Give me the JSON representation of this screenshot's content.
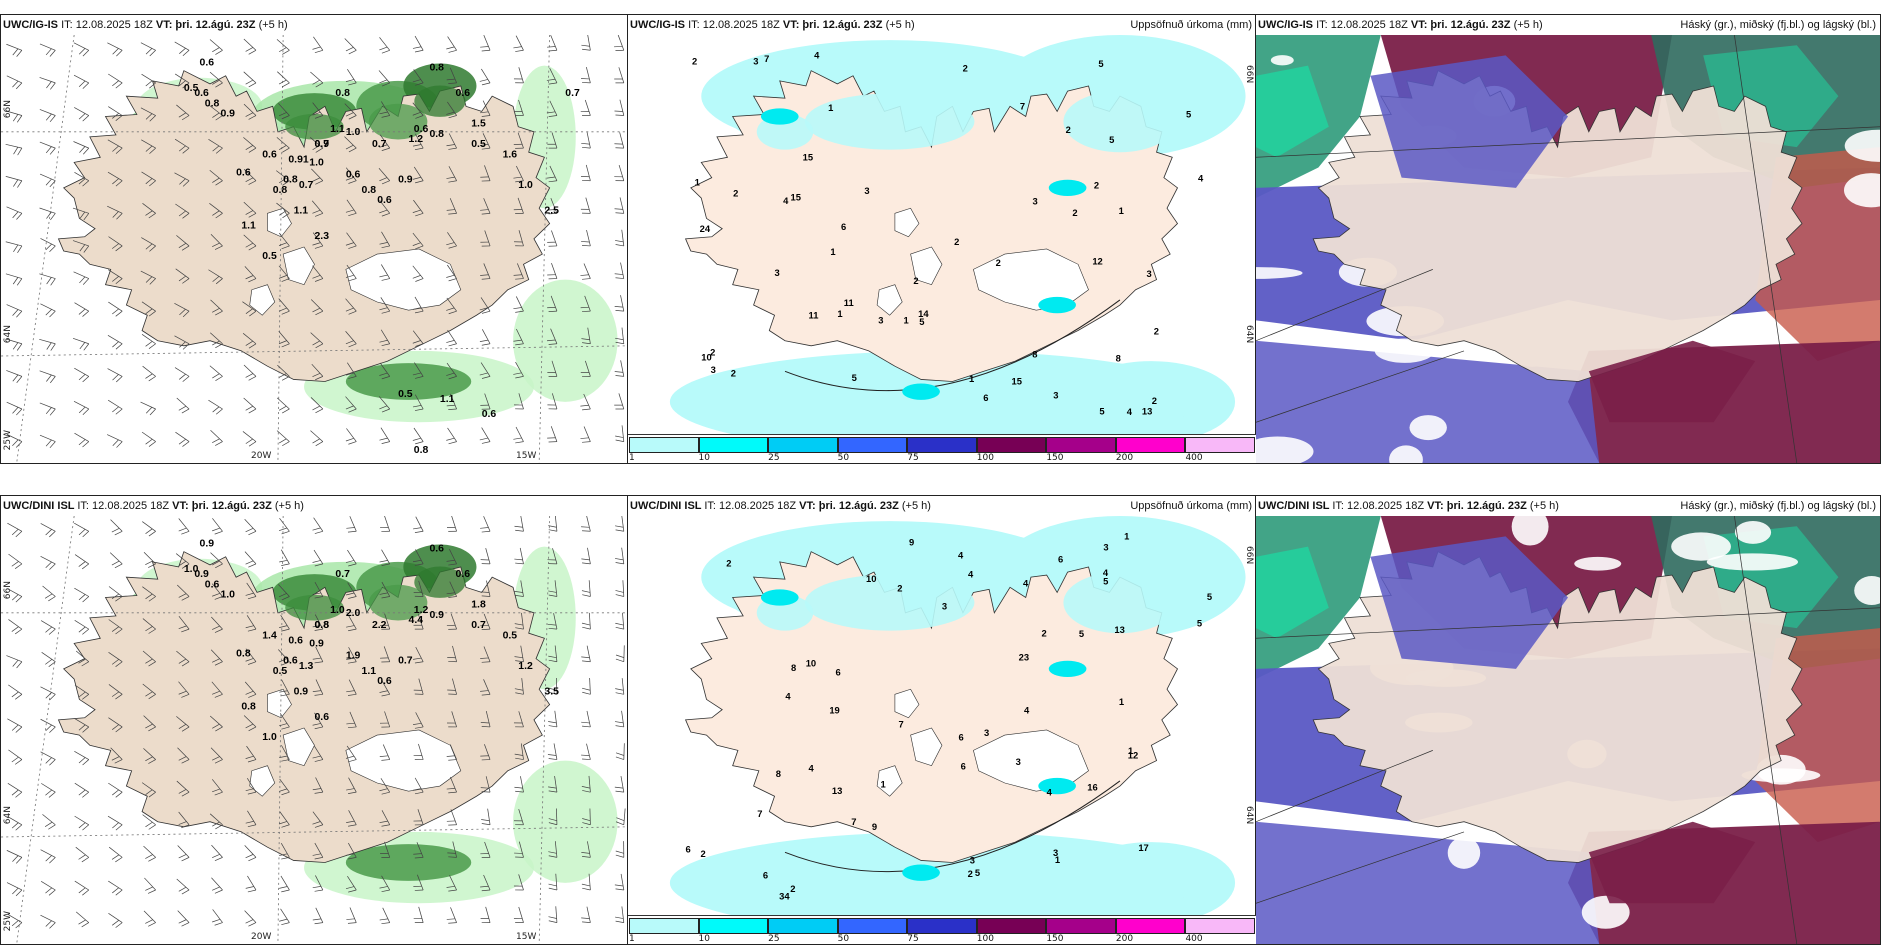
{
  "common": {
    "it_label": "IT:",
    "it_value": "12.08.2025 18Z",
    "vt_label": "VT:",
    "vt_value": "þri. 12.ágú. 23Z",
    "lead": "(+5 h)"
  },
  "panels": [
    {
      "model": "UWC/IG-IS",
      "product": "",
      "kind": "wind"
    },
    {
      "model": "UWC/IG-IS",
      "product": "Uppsöfnuð úrkoma (mm)",
      "kind": "precip"
    },
    {
      "model": "UWC/IG-IS",
      "product": "Háský (gr.), miðský (fj.bl.) og lágský (bl.)",
      "kind": "cloud"
    },
    {
      "model": "UWC/DINI ISL",
      "product": "",
      "kind": "wind"
    },
    {
      "model": "UWC/DINI ISL",
      "product": "Uppsöfnuð úrkoma (mm)",
      "kind": "precip"
    },
    {
      "model": "UWC/DINI ISL",
      "product": "Háský (gr.), miðský (fj.bl.) og lágský (bl.)",
      "kind": "cloud"
    }
  ],
  "axis_labels": {
    "lat_66": "66N",
    "lat_64": "64N",
    "lon_25": "25W",
    "lon_20": "20W",
    "lon_15": "15W"
  },
  "colorbar": {
    "ticks": [
      "1",
      "10",
      "25",
      "50",
      "75",
      "100",
      "150",
      "200",
      "400"
    ],
    "colors": [
      "#b8fafa",
      "#00fafa",
      "#00ccf5",
      "#3366ff",
      "#2a30c8",
      "#770055",
      "#a5008a",
      "#ff00cc",
      "#f8b8f8"
    ]
  },
  "wind_values_top": [
    "0.6",
    "0.5",
    "0.6",
    "0.8",
    "0.9",
    "0.8",
    "1.1",
    "1.0",
    "0.9",
    "0.6",
    "0.91",
    "1.0",
    "0.7",
    "0.8",
    "0.6",
    "0.8",
    "0.7",
    "0.6",
    "0.8",
    "0.6",
    "0.9",
    "0.6",
    "0.8",
    "1.2",
    "0.7",
    "0.5",
    "1.6",
    "1.0",
    "2.5",
    "2.3",
    "1.1",
    "0.5",
    "1.1",
    "0.8",
    "0.6",
    "1.5",
    "0.7",
    "0.5",
    "1.1",
    "0.6",
    "0.8"
  ],
  "wind_values_bottom": [
    "0.9",
    "1.0",
    "0.9",
    "0.6",
    "1.0",
    "0.7",
    "1.0",
    "2.0",
    "0.8",
    "1.4",
    "0.6",
    "0.9",
    "0.8",
    "0.6",
    "0.8",
    "0.5",
    "1.3",
    "1.9",
    "1.1",
    "0.6",
    "0.7",
    "1.2",
    "0.9",
    "4.4",
    "2.2",
    "0.7",
    "0.5",
    "1.2",
    "3.5",
    "0.6",
    "0.8",
    "1.0",
    "0.9",
    "0.6",
    "0.6",
    "1.8"
  ],
  "precip_values_top": [
    "2",
    "4",
    "3",
    "12",
    "13",
    "1",
    "1",
    "1",
    "1",
    "2",
    "1",
    "2",
    "2",
    "5",
    "6",
    "8",
    "2",
    "4",
    "5",
    "3",
    "4",
    "15",
    "15",
    "11",
    "8",
    "3",
    "1",
    "2",
    "5",
    "10",
    "11",
    "3",
    "2",
    "2",
    "2",
    "1",
    "2",
    "7",
    "3",
    "5",
    "24",
    "2",
    "3",
    "3",
    "5",
    "3",
    "14",
    "15",
    "4",
    "7",
    "6",
    "2",
    "2",
    "5"
  ],
  "precip_values_bottom": [
    "5",
    "9",
    "6",
    "13",
    "9",
    "2",
    "1",
    "1",
    "4",
    "5",
    "4",
    "10",
    "6",
    "4",
    "10",
    "17",
    "12",
    "5",
    "19",
    "23",
    "7",
    "7",
    "5",
    "8",
    "3",
    "4",
    "6",
    "6",
    "4",
    "8",
    "1",
    "3",
    "2",
    "4",
    "3",
    "2",
    "4",
    "3",
    "6",
    "6",
    "34",
    "1",
    "2",
    "3",
    "13",
    "16",
    "7",
    "5",
    "3",
    "2",
    "4",
    "2",
    "1"
  ]
}
